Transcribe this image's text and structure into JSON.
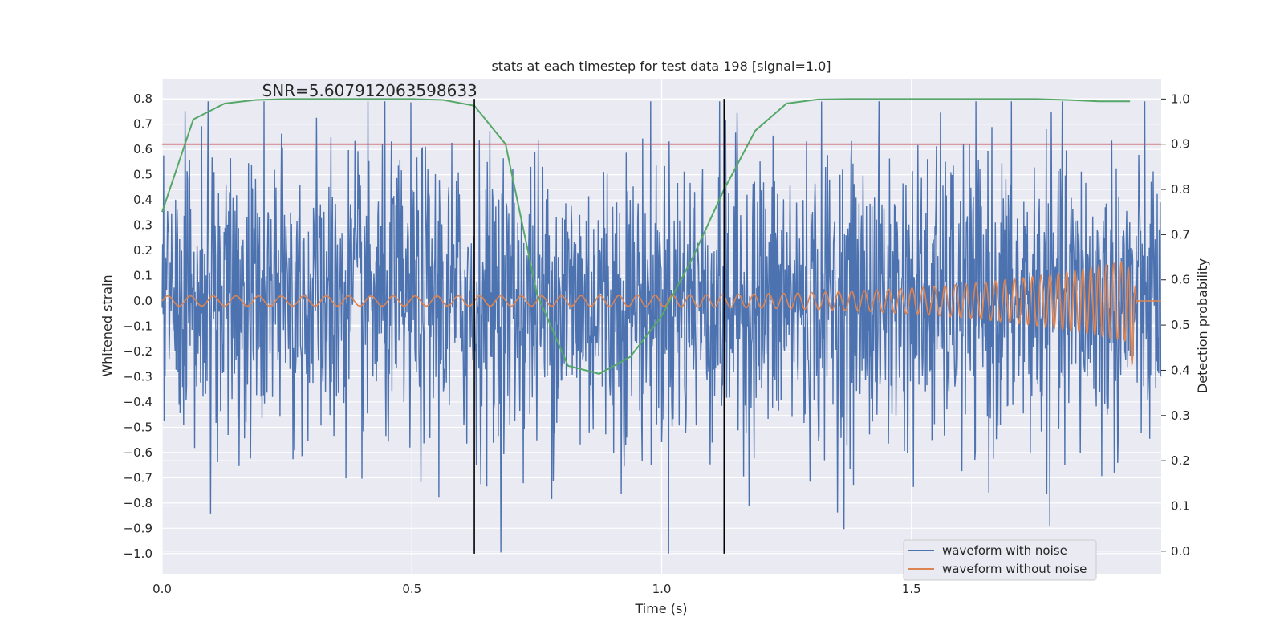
{
  "chart_data": {
    "type": "line",
    "title": "stats at each timestep for test data 198 [signal=1.0]",
    "annotation": "SNR=5.607912063598633",
    "annotation_position": {
      "x": 0.2,
      "y": 0.81
    },
    "xlabel": "Time (s)",
    "ylabel_left": "Whitened strain",
    "ylabel_right": "Detection probability",
    "xlim": [
      0.0,
      2.0
    ],
    "ylim_left": [
      -1.08,
      0.88
    ],
    "ylim_right": [
      -0.05,
      1.045
    ],
    "xticks": [
      0.0,
      0.5,
      1.0,
      1.5
    ],
    "xtick_labels": [
      "0.0",
      "0.5",
      "1.0",
      "1.5"
    ],
    "yticks_left": [
      0.8,
      0.7,
      0.6,
      0.5,
      0.4,
      0.3,
      0.2,
      0.1,
      0.0,
      -0.1,
      -0.2,
      -0.3,
      -0.4,
      -0.5,
      -0.6,
      -0.7,
      -0.8,
      -0.9,
      -1.0
    ],
    "ytick_labels_left": [
      "0.8",
      "0.7",
      "0.6",
      "0.5",
      "0.4",
      "0.3",
      "0.2",
      "0.1",
      "0.0",
      "−0.1",
      "−0.2",
      "−0.3",
      "−0.4",
      "−0.5",
      "−0.6",
      "−0.7",
      "−0.8",
      "−0.9",
      "−1.0"
    ],
    "yticks_right": [
      1.0,
      0.9,
      0.8,
      0.7,
      0.6,
      0.5,
      0.4,
      0.3,
      0.2,
      0.1,
      0.0
    ],
    "ytick_labels_right": [
      "1.0",
      "0.9",
      "0.8",
      "0.7",
      "0.6",
      "0.5",
      "0.4",
      "0.3",
      "0.2",
      "0.1",
      "0.0"
    ],
    "grid": true,
    "legend_position": "bottom-right",
    "series": [
      {
        "name": "waveform with noise",
        "axis": "left",
        "color": "#4c72b0",
        "kind": "noisy",
        "t_start": 0.0,
        "t_end": 2.0,
        "samples": 2000,
        "std": 0.3,
        "max": 0.79,
        "min": -1.0
      },
      {
        "name": "waveform without noise",
        "axis": "left",
        "color": "#dd8452",
        "kind": "chirp",
        "t_start": 0.0,
        "t_merge": 1.95,
        "t_end": 2.0,
        "f0": 22,
        "f1": 70,
        "amp_start": 0.02,
        "amp_peak": 0.17
      },
      {
        "name": "detection probability",
        "axis": "right",
        "color": "#55a868",
        "x": [
          0.0,
          0.0625,
          0.125,
          0.1875,
          0.25,
          0.3125,
          0.375,
          0.4375,
          0.5,
          0.5625,
          0.625,
          0.6875,
          0.75,
          0.8125,
          0.875,
          0.9375,
          1.0,
          1.0625,
          1.125,
          1.1875,
          1.25,
          1.3125,
          1.375,
          1.4375,
          1.5,
          1.5625,
          1.625,
          1.6875,
          1.75,
          1.8125,
          1.875,
          1.9375
        ],
        "y": [
          0.75,
          0.955,
          0.99,
          0.998,
          1.0,
          1.0,
          1.0,
          1.0,
          1.0,
          0.998,
          0.985,
          0.9,
          0.57,
          0.41,
          0.392,
          0.43,
          0.52,
          0.65,
          0.8,
          0.93,
          0.99,
          0.999,
          1.0,
          1.0,
          1.0,
          1.0,
          1.0,
          1.0,
          1.0,
          0.998,
          0.995,
          0.995
        ]
      }
    ],
    "threshold": {
      "axis": "right",
      "value": 0.9,
      "color": "#c44e52"
    },
    "vlines": [
      0.625,
      1.125
    ],
    "vline_range": [
      -1.0,
      0.8
    ],
    "vline_color": "#000000"
  }
}
